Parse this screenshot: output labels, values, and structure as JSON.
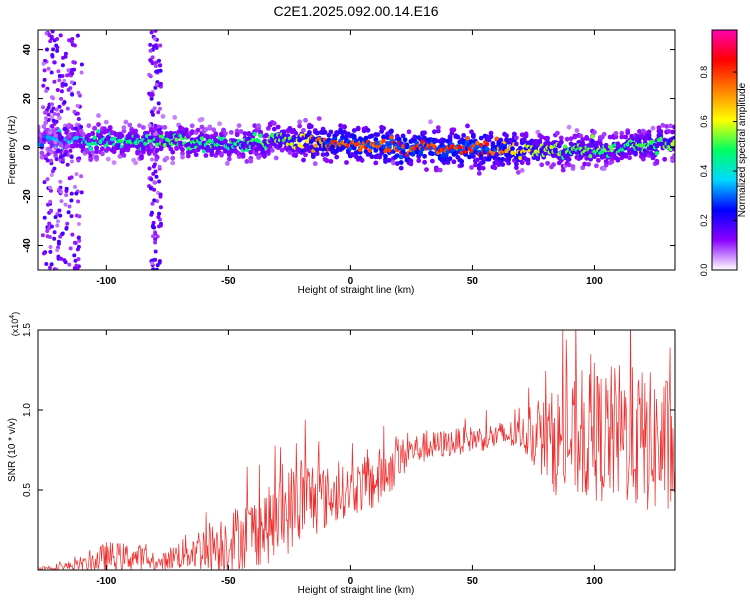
{
  "title": "C2E1.2025.092.00.14.E16",
  "chart_data": [
    {
      "type": "heatmap",
      "xlabel": "Height of straight line (km)",
      "ylabel": "Frequency (Hz)",
      "xlim": [
        -128,
        133
      ],
      "ylim": [
        -50,
        48
      ],
      "xticks": [
        -100,
        -50,
        0,
        50,
        100
      ],
      "xtick_labels": [
        "-100",
        "-50",
        "0",
        "50",
        "100"
      ],
      "yticks": [
        -40,
        -20,
        0,
        20,
        40
      ],
      "ytick_labels": [
        "-40",
        "-20",
        "0",
        "20",
        "40"
      ],
      "colorbar": {
        "label": "Normalized spectral amplitude",
        "range": [
          0,
          0.97
        ],
        "ticks": [
          0,
          0.2,
          0.4,
          0.6,
          0.8
        ],
        "tick_labels": [
          "0.0",
          "0.2",
          "0.4",
          "0.6",
          "0.8"
        ],
        "colormap": [
          "#ffffff",
          "#8a00ff",
          "#0000ff",
          "#00d8ff",
          "#00ff60",
          "#ffff00",
          "#ff8000",
          "#ff0000",
          "#ff00b0"
        ]
      },
      "ridge": [
        {
          "x": -125,
          "freq": 3,
          "amp": 0.35
        },
        {
          "x": -100,
          "freq": 3,
          "amp": 0.5
        },
        {
          "x": -90,
          "freq": 2,
          "amp": 0.5
        },
        {
          "x": -75,
          "freq": 3,
          "amp": 0.55
        },
        {
          "x": -50,
          "freq": 1,
          "amp": 0.5
        },
        {
          "x": -25,
          "freq": 3,
          "amp": 0.6
        },
        {
          "x": -10,
          "freq": 2,
          "amp": 0.85
        },
        {
          "x": 20,
          "freq": 0,
          "amp": 0.9
        },
        {
          "x": 55,
          "freq": 0,
          "amp": 0.9
        },
        {
          "x": 80,
          "freq": -2,
          "amp": 0.6
        },
        {
          "x": 110,
          "freq": 0,
          "amp": 0.55
        },
        {
          "x": 133,
          "freq": 2,
          "amp": 0.6
        }
      ]
    },
    {
      "type": "line",
      "xlabel": "Height of straight line (km)",
      "ylabel": "SNR (10 * v/v)",
      "multiplier_label": "(x10",
      "multiplier_exponent": "4",
      "multiplier_close": ")",
      "xlim": [
        -128,
        133
      ],
      "ylim": [
        0,
        1.5
      ],
      "xticks": [
        -100,
        -50,
        0,
        50,
        100
      ],
      "xtick_labels": [
        "-100",
        "-50",
        "0",
        "50",
        "100"
      ],
      "yticks": [
        0.5,
        1.0,
        1.5
      ],
      "ytick_labels": [
        "0.5",
        "1.0",
        "1.5"
      ],
      "color": "#ee2c2c",
      "envelope": [
        {
          "x": -128,
          "mean": 0.01,
          "amp": 0.01
        },
        {
          "x": -110,
          "mean": 0.03,
          "amp": 0.04
        },
        {
          "x": -100,
          "mean": 0.08,
          "amp": 0.1
        },
        {
          "x": -85,
          "mean": 0.08,
          "amp": 0.08
        },
        {
          "x": -80,
          "mean": 0.03,
          "amp": 0.03
        },
        {
          "x": -70,
          "mean": 0.1,
          "amp": 0.1
        },
        {
          "x": -50,
          "mean": 0.18,
          "amp": 0.2
        },
        {
          "x": -30,
          "mean": 0.3,
          "amp": 0.25
        },
        {
          "x": -20,
          "mean": 0.45,
          "amp": 0.3
        },
        {
          "x": -10,
          "mean": 0.45,
          "amp": 0.2
        },
        {
          "x": 0,
          "mean": 0.5,
          "amp": 0.15
        },
        {
          "x": 10,
          "mean": 0.55,
          "amp": 0.2
        },
        {
          "x": 25,
          "mean": 0.75,
          "amp": 0.1
        },
        {
          "x": 50,
          "mean": 0.82,
          "amp": 0.08
        },
        {
          "x": 70,
          "mean": 0.85,
          "amp": 0.1
        },
        {
          "x": 85,
          "mean": 0.8,
          "amp": 0.35
        },
        {
          "x": 110,
          "mean": 0.85,
          "amp": 0.45
        },
        {
          "x": 133,
          "mean": 0.75,
          "amp": 0.45
        }
      ]
    }
  ]
}
